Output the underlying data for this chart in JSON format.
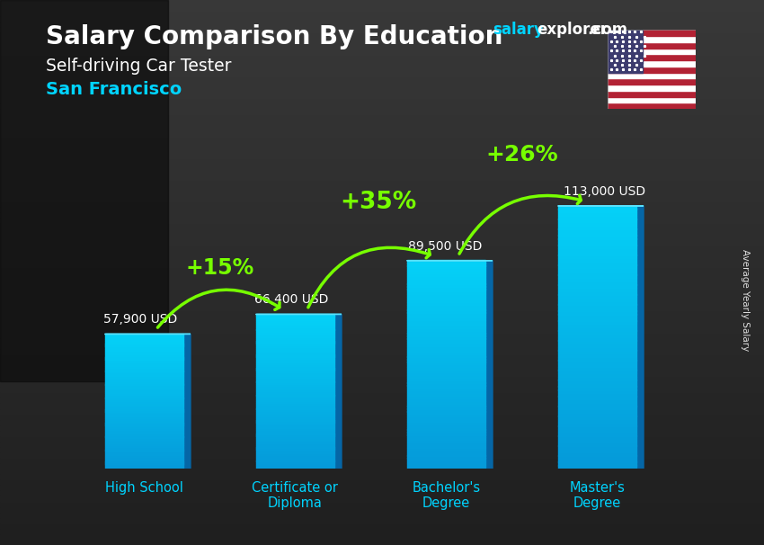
{
  "title_main": "Salary Comparison By Education",
  "title_sub": "Self-driving Car Tester",
  "title_location": "San Francisco",
  "ylabel": "Average Yearly Salary",
  "categories": [
    "High School",
    "Certificate or\nDiploma",
    "Bachelor's\nDegree",
    "Master's\nDegree"
  ],
  "values": [
    57900,
    66400,
    89500,
    113000
  ],
  "labels": [
    "57,900 USD",
    "66,400 USD",
    "89,500 USD",
    "113,000 USD"
  ],
  "pct_changes": [
    "+15%",
    "+35%",
    "+26%"
  ],
  "bar_face_color": "#1ab8e8",
  "bar_side_color": "#0d7ab5",
  "bar_top_color": "#5dd8f5",
  "bg_color": "#1a1a1a",
  "title_color": "#ffffff",
  "subtitle_color": "#ffffff",
  "location_color": "#00d4ff",
  "label_color": "#ffffff",
  "pct_color": "#77ff00",
  "arrow_color": "#77ff00",
  "xtick_color": "#00d4ff",
  "ylim": [
    0,
    150000
  ],
  "bar_width": 0.52,
  "fig_width": 8.5,
  "fig_height": 6.06,
  "watermark_salary_color": "#00d4ff",
  "watermark_rest_color": "#ffffff"
}
